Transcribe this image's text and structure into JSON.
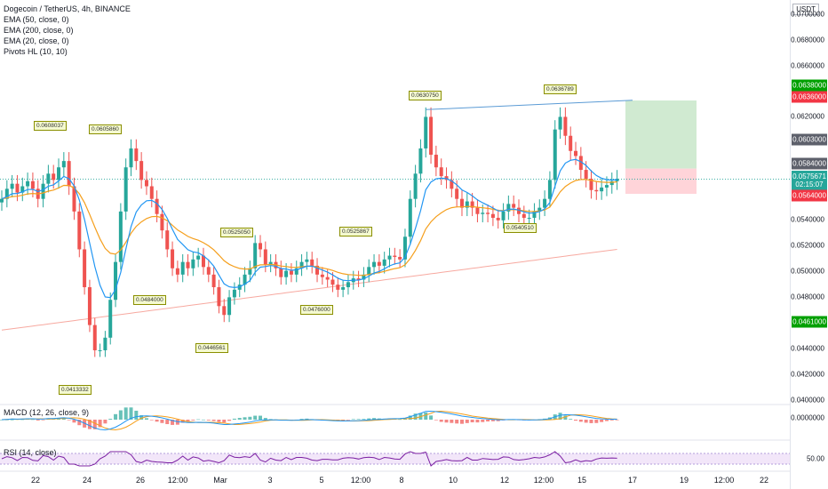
{
  "header": {
    "symbol_line": "Dogecoin / TetherUS, 4h, BINANCE",
    "indicators": [
      "EMA (50, close, 0)",
      "EMA (200, close, 0)",
      "EMA (20, close, 0)",
      "Pivots HL (10, 10)"
    ]
  },
  "currency_label": "USDT",
  "macd_label": "MACD (12, 26, close, 9)",
  "rsi_label": "RSI (14, close)",
  "price_axis": [
    "0.0700000",
    "0.0680000",
    "0.0660000",
    "0.0620000",
    "0.0540000",
    "0.0520000",
    "0.0500000",
    "0.0480000",
    "0.0440000",
    "0.0420000",
    "0.0400000"
  ],
  "macd_axis": "0.0000000",
  "rsi_axis": "50.00",
  "price_badges": {
    "take_profit": "0.0638000",
    "entry_upper": "0.0636000",
    "resistance": "0.0603000",
    "entry": "0.0584000",
    "last_price": "0.0575671",
    "countdown": "02:15:07",
    "stop_loss": "0.0564000",
    "support": "0.0461000"
  },
  "time_axis": [
    "22",
    "24",
    "26",
    "12:00",
    "Mar",
    "3",
    "5",
    "12:00",
    "8",
    "10",
    "12",
    "12:00",
    "15",
    "17",
    "19",
    "12:00",
    "22"
  ],
  "pivots": [
    "0.0608037",
    "0.0605860",
    "0.0484000",
    "0.0446561",
    "0.0413332",
    "0.0525050",
    "0.0476000",
    "0.0525867",
    "0.0630750",
    "0.0540510",
    "0.0636789"
  ],
  "colors": {
    "up": "#26a69a",
    "down": "#ef5350",
    "ema20": "#2196f3",
    "ema50": "#f59f1c",
    "ema200": "#f7a9a0",
    "rsi": "#7b1fa2",
    "target_zone": "#c8e6c9",
    "stop_zone": "#ffcdd2",
    "support_badge": "#00a000",
    "stop_badge": "#f23645",
    "grey_badge": "#5d606b",
    "last_badge": "#26a69a"
  },
  "chart_data": {
    "type": "candlestick",
    "title": "Dogecoin / TetherUS, 4h, BINANCE",
    "ylim": [
      0.0397,
      0.0712
    ],
    "close_series": [
      0.056,
      0.0568,
      0.0572,
      0.0565,
      0.057,
      0.0574,
      0.0568,
      0.056,
      0.0572,
      0.058,
      0.0575,
      0.0585,
      0.059,
      0.057,
      0.055,
      0.052,
      0.049,
      0.046,
      0.044,
      0.044,
      0.045,
      0.048,
      0.051,
      0.055,
      0.0585,
      0.06,
      0.059,
      0.0575,
      0.057,
      0.056,
      0.0548,
      0.0535,
      0.052,
      0.0505,
      0.05,
      0.051,
      0.0505,
      0.0512,
      0.0515,
      0.0506,
      0.05,
      0.049,
      0.0475,
      0.0468,
      0.0482,
      0.0488,
      0.0492,
      0.05,
      0.0505,
      0.0525,
      0.052,
      0.0508,
      0.051,
      0.0505,
      0.0498,
      0.0503,
      0.05,
      0.0505,
      0.051,
      0.0512,
      0.0507,
      0.05,
      0.0498,
      0.0496,
      0.0492,
      0.0488,
      0.049,
      0.0494,
      0.0497,
      0.0496,
      0.05,
      0.0506,
      0.051,
      0.0507,
      0.0512,
      0.0515,
      0.0514,
      0.0512,
      0.053,
      0.056,
      0.058,
      0.06,
      0.0625,
      0.0595,
      0.0585,
      0.0578,
      0.0575,
      0.0568,
      0.056,
      0.0553,
      0.0558,
      0.0553,
      0.0548,
      0.0549,
      0.0548,
      0.0545,
      0.0543,
      0.055,
      0.0556,
      0.0553,
      0.0548,
      0.0545,
      0.0545,
      0.055,
      0.0553,
      0.056,
      0.0575,
      0.0615,
      0.0625,
      0.061,
      0.0598,
      0.0594,
      0.0583,
      0.0576,
      0.0567,
      0.0566,
      0.0569,
      0.0571,
      0.0574,
      0.0576
    ]
  }
}
